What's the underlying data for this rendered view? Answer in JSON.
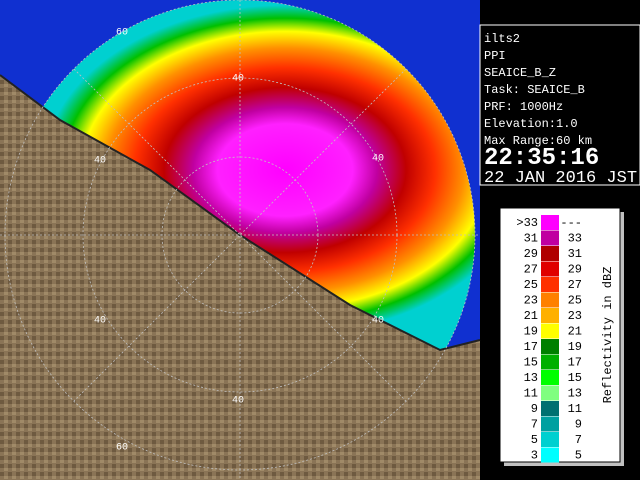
{
  "info": {
    "station": "ilts2",
    "mode": "PPI",
    "product": "SEAICE_B_Z",
    "task": "Task: SEAICE_B",
    "prf": "PRF: 1000Hz",
    "elevation": "Elevation:1.0",
    "max_range": "Max Range:60 km",
    "time": "22:35:16",
    "date": "22 JAN 2016 JST"
  },
  "legend": {
    "title": "Reflectivity in dBZ",
    "rows": [
      {
        "color": "#ff00ff",
        "low": ">33",
        "high": "---"
      },
      {
        "color": "#c000a0",
        "low": "31",
        "high": "33"
      },
      {
        "color": "#b00000",
        "low": "29",
        "high": "31"
      },
      {
        "color": "#e00000",
        "low": "27",
        "high": "29"
      },
      {
        "color": "#ff3000",
        "low": "25",
        "high": "27"
      },
      {
        "color": "#ff8000",
        "low": "23",
        "high": "25"
      },
      {
        "color": "#ffb000",
        "low": "21",
        "high": "23"
      },
      {
        "color": "#ffff00",
        "low": "19",
        "high": "21"
      },
      {
        "color": "#008000",
        "low": "17",
        "high": "19"
      },
      {
        "color": "#00b000",
        "low": "15",
        "high": "17"
      },
      {
        "color": "#00ff00",
        "low": "13",
        "high": "15"
      },
      {
        "color": "#80ff80",
        "low": "11",
        "high": "13"
      },
      {
        "color": "#007070",
        "low": "9",
        "high": "11"
      },
      {
        "color": "#00a0a0",
        "low": "7",
        "high": "9"
      },
      {
        "color": "#00d0d0",
        "low": "5",
        "high": "7"
      },
      {
        "color": "#00ffff",
        "low": "3",
        "high": "5"
      }
    ]
  },
  "range_labels": [
    "60",
    "40",
    "40",
    "40",
    "40",
    "40",
    "40",
    "60"
  ]
}
